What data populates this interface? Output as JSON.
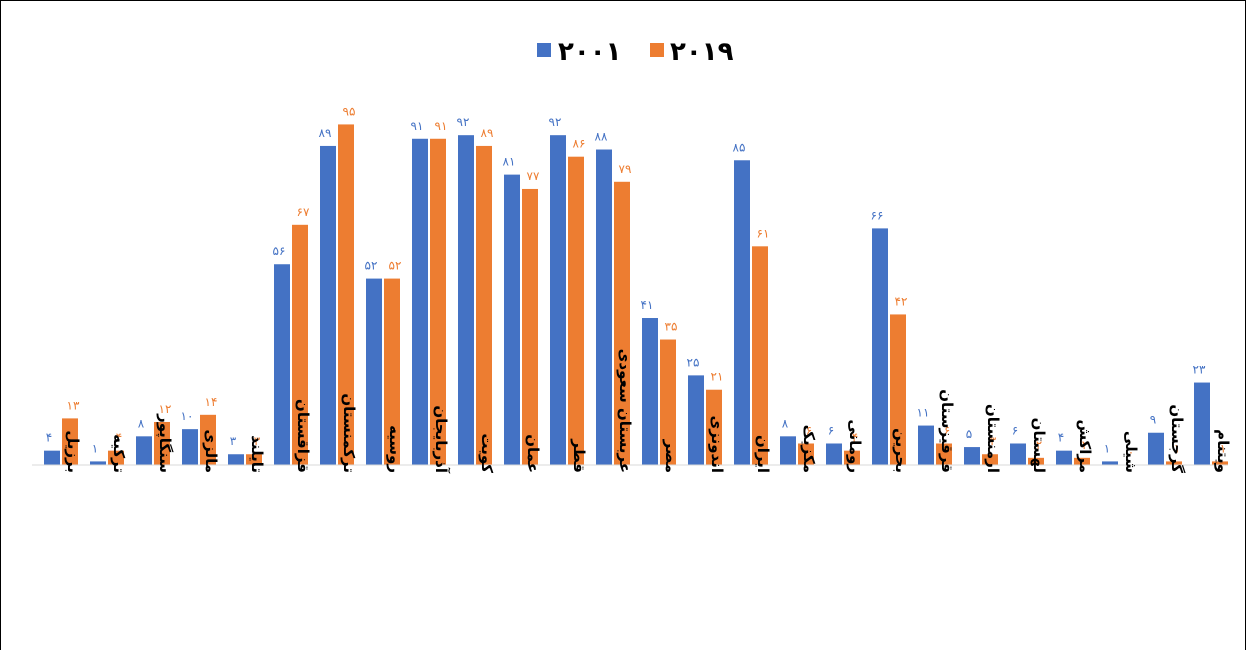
{
  "chart_data": {
    "type": "bar",
    "ylim": [
      0,
      100
    ],
    "grid": false,
    "legend_position": "top-center",
    "colors": {
      "2001": "#4472C4",
      "2019": "#ED7D31"
    },
    "series": [
      {
        "name": "۲۰۰۱",
        "color": "#4472C4",
        "values": [
          4,
          1,
          8,
          10,
          3,
          56,
          89,
          52,
          91,
          92,
          81,
          92,
          88,
          41,
          25,
          85,
          8,
          6,
          66,
          11,
          5,
          6,
          4,
          1,
          9,
          23
        ],
        "labels": [
          "۴",
          "۱",
          "۸",
          "۱۰",
          "۳",
          "۵۶",
          "۸۹",
          "۵۲",
          "۹۱",
          "۹۲",
          "۸۱",
          "۹۲",
          "۸۸",
          "۴۱",
          "۲۵",
          "۸۵",
          "۸",
          "۶",
          "۶۶",
          "۱۱",
          "۵",
          "۶",
          "۴",
          "۱",
          "۹",
          "۲۳"
        ]
      },
      {
        "name": "۲۰۱۹",
        "color": "#ED7D31",
        "values": [
          13,
          4,
          12,
          14,
          3,
          67,
          95,
          52,
          91,
          89,
          77,
          86,
          79,
          35,
          21,
          61,
          6,
          4,
          42,
          6,
          3,
          2,
          2,
          0,
          1,
          1
        ],
        "labels": [
          "۱۳",
          "۴",
          "۱۲",
          "۱۴",
          "۳",
          "۶۷",
          "۹۵",
          "۵۲",
          "۹۱",
          "۸۹",
          "۷۷",
          "۸۶",
          "۷۹",
          "۳۵",
          "۲۱",
          "۶۱",
          "۶",
          "۴",
          "۴۲",
          "۶",
          "۳",
          "۲",
          "۲",
          "۰",
          "۱",
          "۱"
        ]
      }
    ],
    "categories": [
      "برزیل",
      "ترکیه",
      "سنگاپور",
      "مالزی",
      "تایلند",
      "قزاقستان",
      "ترکمنستان",
      "روسیه",
      "آذربایجان",
      "کویت",
      "عمان",
      "قطر",
      "عربستان سعودی",
      "مصر",
      "اندونزی",
      "ایران",
      "مکزیک",
      "رومانی",
      "بحرین",
      "قرقیزستان",
      "ارمنستان",
      "لهستان",
      "مراکش",
      "شیلی",
      "گرجستان",
      "ویتنام"
    ]
  }
}
